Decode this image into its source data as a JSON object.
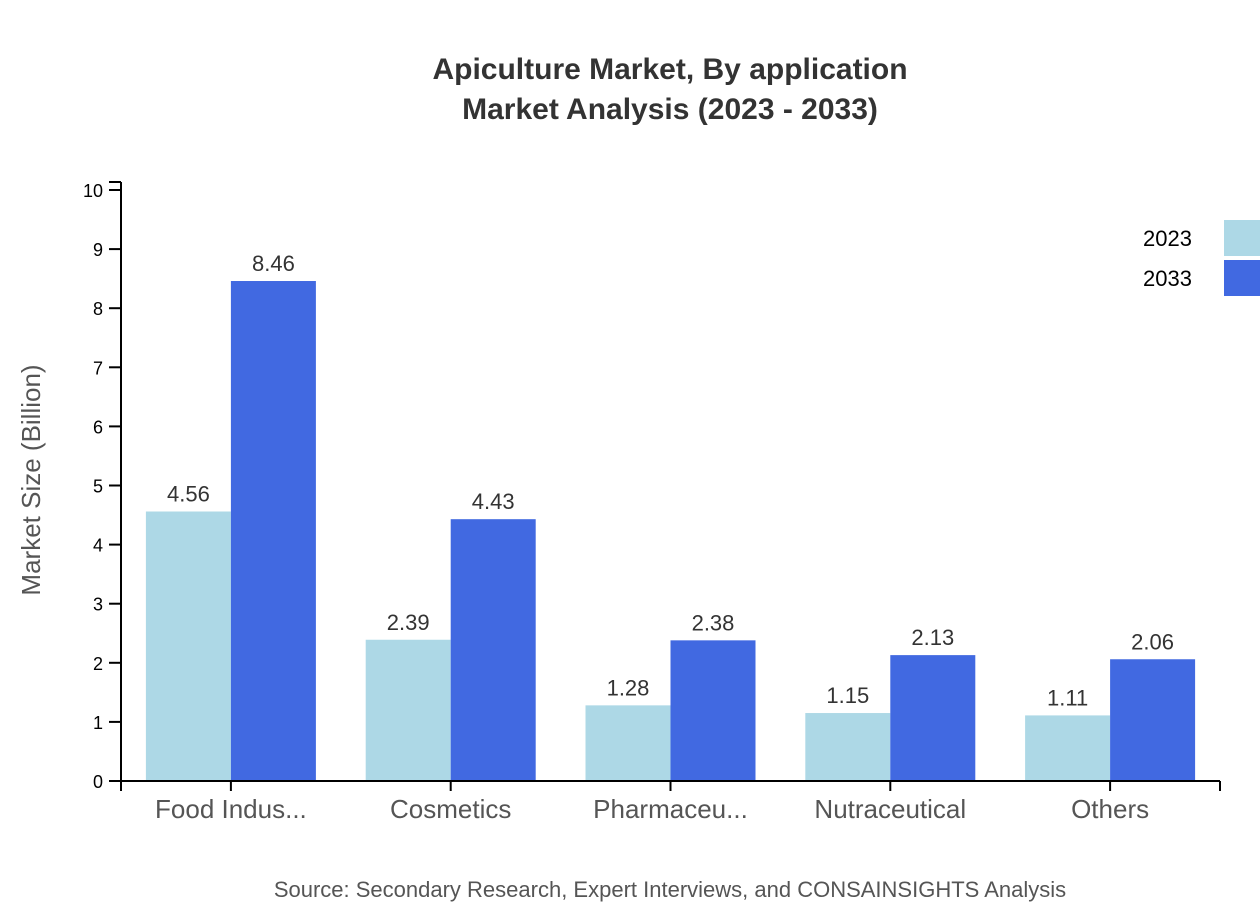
{
  "title": {
    "line1": "Apiculture Market, By application",
    "line2": "Market Analysis (2023 - 2033)"
  },
  "source": "Source: Secondary Research, Expert Interviews, and CONSAINSIGHTS Analysis",
  "legend": [
    {
      "label": "2023",
      "color": "#add8e6"
    },
    {
      "label": "2033",
      "color": "#4169e1"
    }
  ],
  "chart_data": {
    "type": "bar",
    "title": "Apiculture Market, By application Market Analysis (2023 - 2033)",
    "xlabel": "",
    "ylabel": "Market Size (Billion)",
    "ylim": [
      0,
      10
    ],
    "yticks": [
      0,
      1,
      2,
      3,
      4,
      5,
      6,
      7,
      8,
      9,
      10
    ],
    "grid": false,
    "legend_position": "top-right",
    "categories": [
      "Food Indus...",
      "Cosmetics",
      "Pharmaceu...",
      "Nutraceutical",
      "Others"
    ],
    "series": [
      {
        "name": "2023",
        "color": "#add8e6",
        "values": [
          4.56,
          2.39,
          1.28,
          1.15,
          1.11
        ]
      },
      {
        "name": "2033",
        "color": "#4169e1",
        "values": [
          8.46,
          4.43,
          2.38,
          2.13,
          2.06
        ]
      }
    ]
  }
}
